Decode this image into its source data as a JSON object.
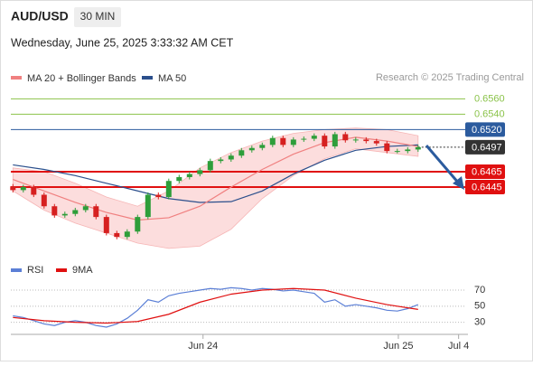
{
  "header": {
    "symbol": "AUD/USD",
    "timeframe": "30 MIN",
    "datetime": "Wednesday, June 25, 2025 3:33:32 AM CET",
    "credit": "Research © 2025 Trading Central"
  },
  "chart_data": [
    {
      "type": "candlestick",
      "legend": [
        {
          "name": "MA 20 + Bollinger Bands",
          "color": "#f08080"
        },
        {
          "name": "MA 50",
          "color": "#2b4f8c"
        }
      ],
      "xlim": [
        -0.2,
        43.8
      ],
      "xticks": [
        {
          "value": 18.3,
          "label": "Jun 24"
        },
        {
          "value": 37.1,
          "label": "Jun 25"
        },
        {
          "value": 42.9,
          "label": "Jul 4"
        }
      ],
      "ylim": [
        0.6359,
        0.6577
      ],
      "open": [
        0.6446,
        0.6441,
        0.6445,
        0.6435,
        0.642,
        0.6408,
        0.641,
        0.6415,
        0.642,
        0.6406,
        0.6385,
        0.638,
        0.6387,
        0.6406,
        0.6435,
        0.6432,
        0.6453,
        0.6458,
        0.6462,
        0.6467,
        0.6479,
        0.6481,
        0.6486,
        0.6493,
        0.6496,
        0.65,
        0.6509,
        0.65,
        0.6507,
        0.6508,
        0.6512,
        0.6498,
        0.6514,
        0.6506,
        0.6507,
        0.6505,
        0.6502,
        0.6492,
        0.6492,
        0.6494
      ],
      "high": [
        0.6449,
        0.6448,
        0.6448,
        0.6438,
        0.6423,
        0.6413,
        0.6418,
        0.6423,
        0.6423,
        0.6409,
        0.6388,
        0.639,
        0.6409,
        0.6438,
        0.6438,
        0.6456,
        0.6461,
        0.6465,
        0.647,
        0.6482,
        0.6484,
        0.6489,
        0.6496,
        0.6499,
        0.6503,
        0.6512,
        0.6512,
        0.651,
        0.6511,
        0.6515,
        0.6515,
        0.6517,
        0.6517,
        0.651,
        0.651,
        0.6508,
        0.6505,
        0.6495,
        0.6497,
        0.65
      ],
      "low": [
        0.6438,
        0.6438,
        0.6432,
        0.6417,
        0.6405,
        0.6405,
        0.6407,
        0.6412,
        0.6403,
        0.6382,
        0.6377,
        0.6377,
        0.6384,
        0.6403,
        0.6429,
        0.6429,
        0.645,
        0.6455,
        0.6459,
        0.6464,
        0.6476,
        0.6478,
        0.6483,
        0.649,
        0.6493,
        0.6497,
        0.6497,
        0.6497,
        0.6504,
        0.6505,
        0.6495,
        0.6495,
        0.6503,
        0.6503,
        0.6502,
        0.6499,
        0.6489,
        0.6489,
        0.6489,
        0.6491
      ],
      "close": [
        0.6441,
        0.6445,
        0.6435,
        0.642,
        0.6408,
        0.641,
        0.6415,
        0.642,
        0.6406,
        0.6385,
        0.638,
        0.6387,
        0.6406,
        0.6435,
        0.6432,
        0.6453,
        0.6458,
        0.6462,
        0.6467,
        0.6479,
        0.6481,
        0.6486,
        0.6493,
        0.6496,
        0.65,
        0.6509,
        0.65,
        0.6507,
        0.6508,
        0.6512,
        0.6498,
        0.6514,
        0.6506,
        0.6507,
        0.6505,
        0.6502,
        0.6492,
        0.6492,
        0.6494,
        0.6497
      ],
      "line_x": [
        0,
        3,
        6,
        9,
        12,
        15,
        18,
        21,
        24,
        27,
        30,
        33,
        36,
        39
      ],
      "ma50": [
        0.6474,
        0.6468,
        0.646,
        0.645,
        0.644,
        0.643,
        0.6425,
        0.6426,
        0.644,
        0.6462,
        0.648,
        0.6493,
        0.6498,
        0.65
      ],
      "ma20": [
        0.6455,
        0.644,
        0.6425,
        0.6412,
        0.6402,
        0.6405,
        0.642,
        0.6445,
        0.6468,
        0.6488,
        0.6503,
        0.651,
        0.6505,
        0.6498
      ],
      "bb_upper": [
        0.647,
        0.6465,
        0.645,
        0.6432,
        0.642,
        0.644,
        0.647,
        0.649,
        0.6505,
        0.6515,
        0.652,
        0.6522,
        0.652,
        0.6512
      ],
      "bb_lower": [
        0.644,
        0.6415,
        0.6398,
        0.6385,
        0.6372,
        0.6365,
        0.6368,
        0.639,
        0.643,
        0.646,
        0.6482,
        0.6495,
        0.649,
        0.6485
      ],
      "levels": [
        {
          "value": 0.656,
          "label": "0.6560",
          "color": "#8bc34a",
          "style": "line"
        },
        {
          "value": 0.654,
          "label": "0.6540",
          "color": "#8bc34a",
          "style": "line"
        },
        {
          "value": 0.652,
          "label": "0.6520",
          "color": "#2b5b9e",
          "style": "box"
        },
        {
          "value": 0.6497,
          "label": "0.6497",
          "color": "#333333",
          "style": "dotted"
        },
        {
          "value": 0.6465,
          "label": "0.6465",
          "color": "#e01010",
          "style": "thick"
        },
        {
          "value": 0.6445,
          "label": "0.6445",
          "color": "#e01010",
          "style": "thick"
        }
      ]
    },
    {
      "type": "line",
      "ylim": [
        15,
        88
      ],
      "yticks": [
        70,
        50,
        30
      ],
      "series": [
        {
          "name": "RSI",
          "color": "#5b7fd6",
          "values": [
            38,
            36,
            32,
            28,
            26,
            30,
            32,
            30,
            26,
            24,
            28,
            35,
            45,
            58,
            55,
            63,
            66,
            68,
            70,
            72,
            71,
            73,
            72,
            70,
            72,
            71,
            69,
            70,
            68,
            66,
            55,
            58,
            50,
            52,
            50,
            48,
            45,
            44,
            47,
            52
          ]
        },
        {
          "name": "9MA",
          "color": "#e01010",
          "x": [
            0,
            3,
            6,
            9,
            12,
            15,
            18,
            21,
            24,
            27,
            30,
            33,
            36,
            39
          ],
          "values": [
            36,
            32,
            30,
            29,
            31,
            40,
            55,
            65,
            70,
            72,
            70,
            60,
            52,
            46
          ]
        }
      ]
    }
  ]
}
